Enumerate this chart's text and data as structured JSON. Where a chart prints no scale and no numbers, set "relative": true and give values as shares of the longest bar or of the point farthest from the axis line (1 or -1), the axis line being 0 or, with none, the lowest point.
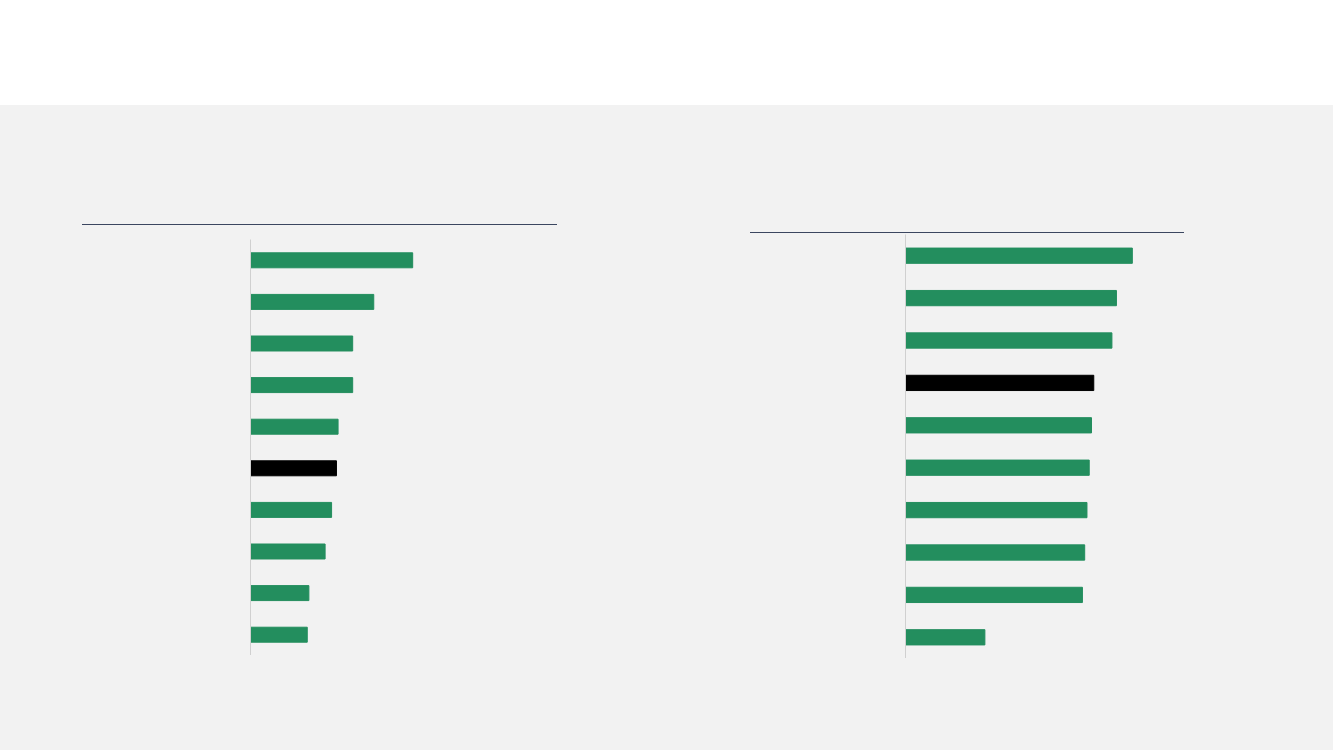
{
  "chart_data": [
    {
      "type": "bar",
      "orientation": "horizontal",
      "relative": true,
      "categories": [
        null,
        null,
        null,
        null,
        null,
        null,
        null,
        null,
        null,
        null
      ],
      "values": [
        1,
        0.76,
        0.63,
        0.63,
        0.54,
        0.53,
        0.5,
        0.46,
        0.36,
        0.35
      ],
      "colors": [
        "#238e5e",
        "#238e5e",
        "#238e5e",
        "#238e5e",
        "#238e5e",
        "#000000",
        "#238e5e",
        "#238e5e",
        "#238e5e",
        "#238e5e"
      ]
    },
    {
      "type": "bar",
      "orientation": "horizontal",
      "relative": true,
      "categories": [
        null,
        null,
        null,
        null,
        null,
        null,
        null,
        null,
        null,
        null
      ],
      "values": [
        1,
        0.93,
        0.91,
        0.83,
        0.82,
        0.81,
        0.8,
        0.79,
        0.78,
        0.35
      ],
      "colors": [
        "#238e5e",
        "#238e5e",
        "#238e5e",
        "#000000",
        "#238e5e",
        "#238e5e",
        "#238e5e",
        "#238e5e",
        "#238e5e",
        "#238e5e"
      ]
    }
  ]
}
